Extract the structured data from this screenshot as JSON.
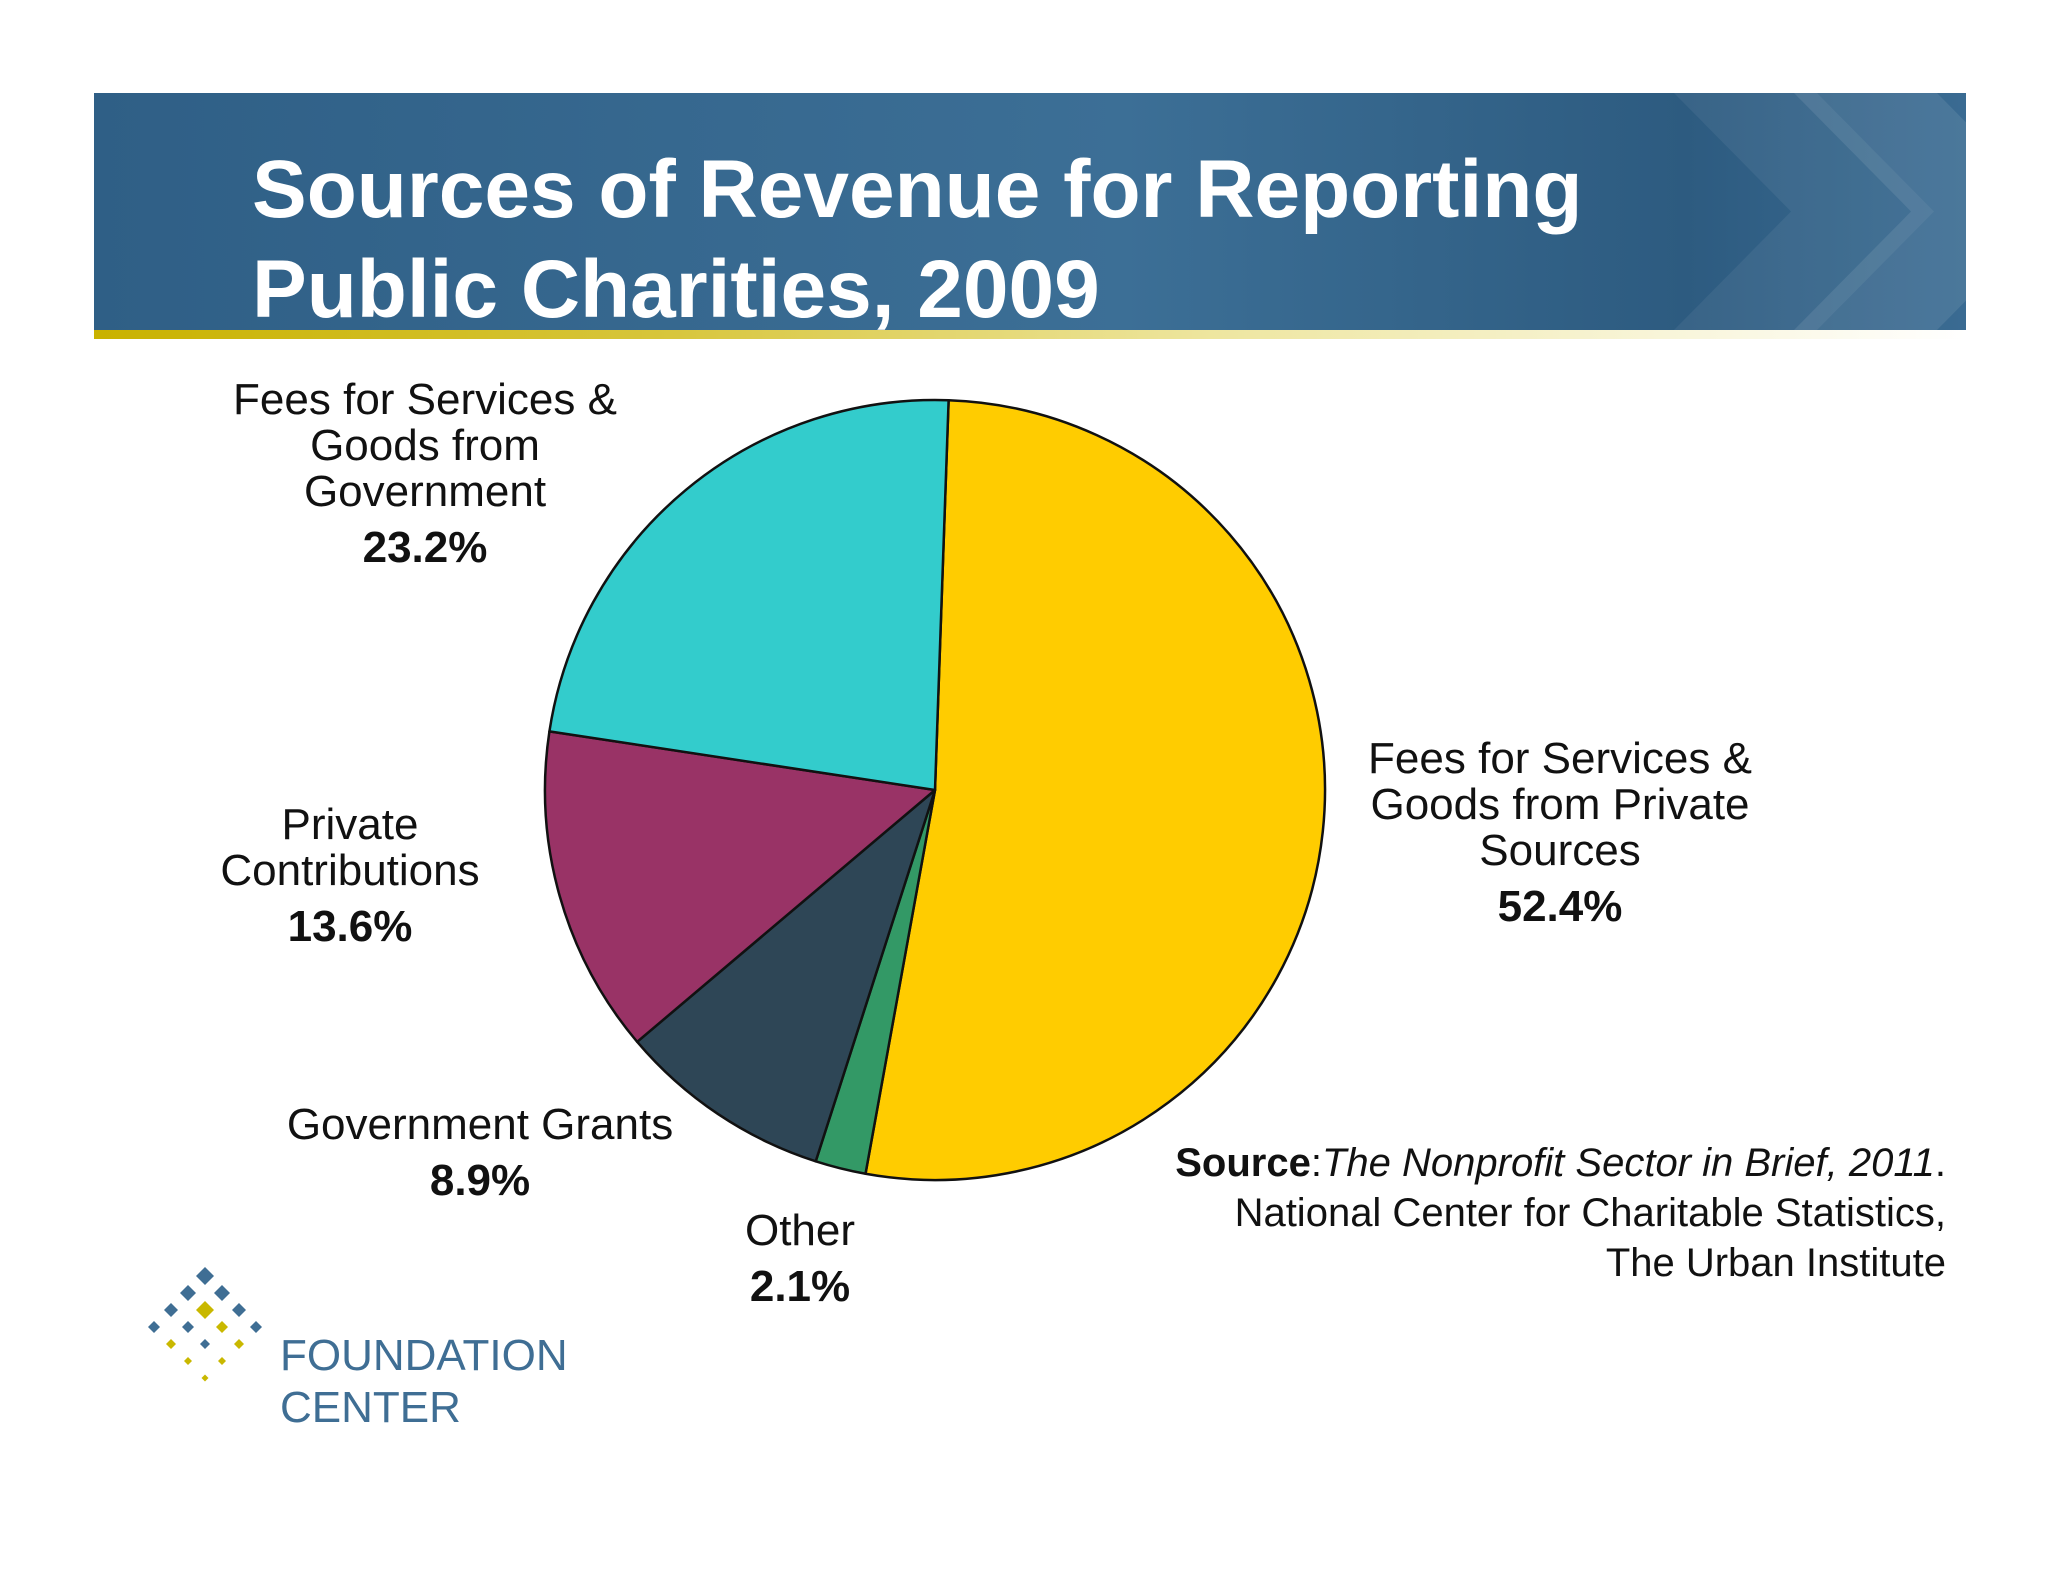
{
  "header": {
    "title_line1": "Sources of Revenue for Reporting",
    "title_line2": "Public Charities, 2009"
  },
  "chart_data": {
    "type": "pie",
    "title": "Sources of Revenue for Reporting Public Charities, 2009",
    "start_angle_deg": 2,
    "slices": [
      {
        "name_lines": [
          "Fees for Services &",
          "Goods from Private",
          "Sources"
        ],
        "value": 52.4,
        "label": "52.4%",
        "color": "#ffcc00"
      },
      {
        "name_lines": [
          "Other"
        ],
        "value": 2.1,
        "label": "2.1%",
        "color": "#339966"
      },
      {
        "name_lines": [
          "Government Grants"
        ],
        "value": 8.9,
        "label": "8.9%",
        "color": "#2e4656"
      },
      {
        "name_lines": [
          "Private",
          "Contributions"
        ],
        "value": 13.6,
        "label": "13.6%",
        "color": "#993366"
      },
      {
        "name_lines": [
          "Fees for Services &",
          "Goods from",
          "Government"
        ],
        "value": 23.2,
        "label": "23.2%",
        "color": "#33cccc"
      }
    ]
  },
  "source": {
    "prefix": "Source",
    "colon": ":",
    "title": "The Nonprofit Sector in Brief, 2011",
    "period": ".",
    "line2": "National Center for Charitable Statistics,",
    "line3": "The Urban Institute"
  },
  "logo": {
    "line1": "FOUNDATION",
    "line2": "CENTER",
    "color_blue": "#3f6e94",
    "color_gold": "#c9b800"
  }
}
